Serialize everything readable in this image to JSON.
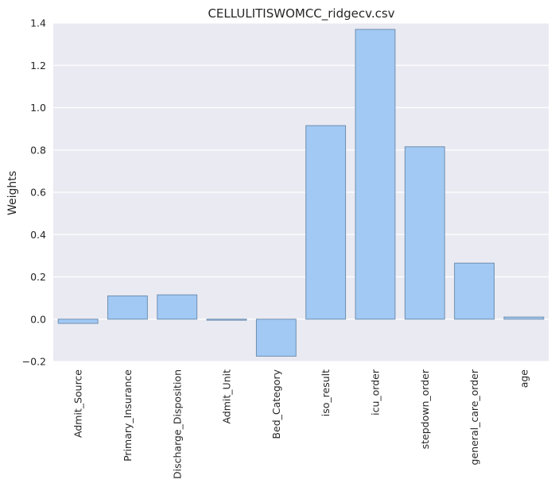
{
  "chart_data": {
    "type": "bar",
    "title": "CELLULITISWOMCC_ridgecv.csv",
    "xlabel": "",
    "ylabel": "Weights",
    "ylim": [
      -0.2,
      1.4
    ],
    "yticks": [
      -0.2,
      0.0,
      0.2,
      0.4,
      0.6,
      0.8,
      1.0,
      1.2,
      1.4
    ],
    "ytick_labels": [
      "−0.2",
      "0.0",
      "0.2",
      "0.4",
      "0.6",
      "0.8",
      "1.0",
      "1.2",
      "1.4"
    ],
    "categories": [
      "Admit_Source",
      "Primary_Insurance",
      "Discharge_Disposition",
      "Admit_Unit",
      "Bed_Category",
      "iso_result",
      "icu_order",
      "stepdown_order",
      "general_care_order",
      "age"
    ],
    "values": [
      -0.02,
      0.11,
      0.115,
      -0.005,
      -0.175,
      0.915,
      1.37,
      0.815,
      0.265,
      0.01
    ],
    "grid": true,
    "legend": "none",
    "colors": {
      "bar_fill": "#a1c9f4",
      "bar_edge": "#6f8fb0",
      "plot_background": "#eaeaf2",
      "grid": "#ffffff",
      "text": "#262626"
    }
  }
}
